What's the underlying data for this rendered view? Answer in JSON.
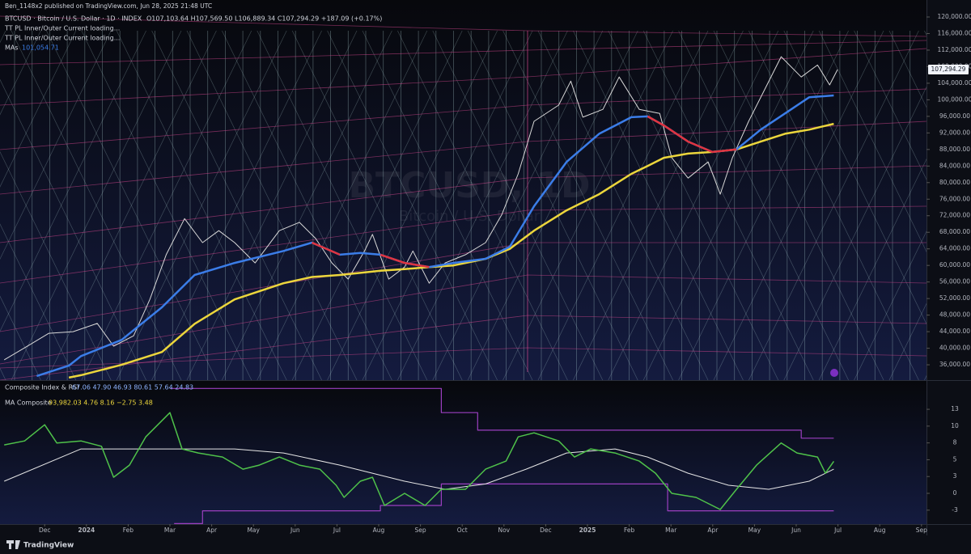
{
  "header": "Ben_1148x2 published on TradingView.com, Jun 28, 2025 21:48 UTC",
  "footer": "TradingView",
  "chart_data": [
    {
      "type": "line",
      "legend": {
        "symbol": "BTCUSD · Bitcoin / U.S. Dollar · 1D · INDEX",
        "ohlc": "O107,103.64 H107,569.50 L106,889.34 C107,294.29 +187.09 (+0.17%)",
        "indicator_1": "TT PL Inner/Outer Current loading...",
        "indicator_2": "TT PL Inner/Outer Current loading...",
        "ma_name": "MAs",
        "ma_value": "101,054.71"
      },
      "watermark": "BTCUSD, 1D",
      "watermark_sub": "Bitcoin / U.S. Dollar",
      "last_price_label": "107,294.29",
      "xlim": [
        -1.07,
        21.12
      ],
      "ylim": [
        32300,
        124100
      ],
      "yticks": [
        {
          "value": 36000,
          "label": "36,000.00"
        },
        {
          "value": 40000,
          "label": "40,000.00"
        },
        {
          "value": 44000,
          "label": "44,000.00"
        },
        {
          "value": 48000,
          "label": "48,000.00"
        },
        {
          "value": 52000,
          "label": "52,000.00"
        },
        {
          "value": 56000,
          "label": "56,000.00"
        },
        {
          "value": 60000,
          "label": "60,000.00"
        },
        {
          "value": 64000,
          "label": "64,000.00"
        },
        {
          "value": 68000,
          "label": "68,000.00"
        },
        {
          "value": 72000,
          "label": "72,000.00"
        },
        {
          "value": 76000,
          "label": "76,000.00"
        },
        {
          "value": 80000,
          "label": "80,000.00"
        },
        {
          "value": 84000,
          "label": "84,000.00"
        },
        {
          "value": 88000,
          "label": "88,000.00"
        },
        {
          "value": 92000,
          "label": "92,000.00"
        },
        {
          "value": 96000,
          "label": "96,000.00"
        },
        {
          "value": 100000,
          "label": "100,000.00"
        },
        {
          "value": 104000,
          "label": "104,000.00"
        },
        {
          "value": 108000,
          "label": "108,000.00"
        },
        {
          "value": 112000,
          "label": "112,000.00"
        },
        {
          "value": 116000,
          "label": "116,000.00"
        },
        {
          "value": 120000,
          "label": "120,000.00"
        }
      ],
      "series": [
        {
          "color": "#d8d8d8",
          "width": 1,
          "x": [
            -0.97,
            -0.48,
            0.1,
            0.68,
            1.26,
            1.65,
            2.13,
            2.52,
            2.91,
            3.35,
            3.78,
            4.17,
            4.55,
            5.04,
            5.62,
            6.1,
            6.49,
            6.88,
            7.27,
            7.66,
            7.85,
            8.24,
            8.62,
            8.82,
            9.21,
            9.59,
            10.08,
            10.56,
            10.95,
            11.34,
            11.72,
            12.31,
            12.6,
            12.89,
            13.37,
            13.76,
            14.24,
            14.73,
            15.02,
            15.41,
            15.89,
            16.18,
            16.47,
            16.86,
            17.25,
            17.64,
            18.12,
            18.51,
            18.8,
            18.99
          ],
          "values": [
            37200,
            40100,
            43600,
            44000,
            46000,
            40500,
            43000,
            51800,
            62600,
            71300,
            65500,
            68400,
            65500,
            60600,
            68400,
            70400,
            66500,
            60600,
            56700,
            63500,
            67500,
            56700,
            59600,
            63500,
            55700,
            60600,
            62600,
            65500,
            72300,
            82100,
            94800,
            98700,
            104500,
            95800,
            97700,
            105500,
            97700,
            96700,
            86000,
            81100,
            85000,
            77200,
            86000,
            94800,
            102600,
            110400,
            105500,
            108400,
            103600,
            107294.29
          ]
        },
        {
          "color": "#ecd63c",
          "width": 2.5,
          "x": [
            -0.19,
            0.58,
            0.87,
            1.84,
            2.81,
            3.59,
            4.55,
            5.72,
            6.4,
            7.07,
            7.56,
            8.04,
            8.62,
            9.21,
            9.79,
            10.56,
            11.14,
            11.72,
            12.5,
            13.28,
            14.05,
            14.44,
            14.83,
            15.41,
            15.99,
            16.57,
            17.15,
            17.73,
            18.31,
            18.9
          ],
          "values": [
            null,
            32900,
            33500,
            36000,
            39100,
            45900,
            51800,
            55700,
            57200,
            57700,
            58200,
            58700,
            59100,
            59600,
            60000,
            61600,
            64000,
            68400,
            73300,
            77200,
            82100,
            84000,
            86000,
            87000,
            87400,
            88000,
            89900,
            91800,
            92800,
            94200
          ]
        },
        {
          "color": "#3b7de8",
          "width": 2.5,
          "x": [
            -0.19,
            0.58,
            0.87,
            1.84,
            2.81,
            3.59,
            4.55,
            5.72,
            6.4,
            7.07,
            7.56,
            8.04,
            8.62,
            9.21,
            9.79,
            10.56,
            11.14,
            11.72,
            12.5,
            13.28,
            14.05,
            14.44,
            14.83,
            15.41,
            15.99,
            16.57,
            17.15,
            17.73,
            18.31,
            18.9
          ],
          "values": [
            33300,
            35800,
            38100,
            42000,
            49900,
            57700,
            60600,
            63500,
            65500,
            62600,
            63000,
            62600,
            60600,
            59600,
            60600,
            61600,
            64500,
            74300,
            85000,
            91800,
            95800,
            96000,
            93800,
            89900,
            87400,
            88000,
            92800,
            96700,
            100600,
            101054.71
          ]
        },
        {
          "color": "#e0343f",
          "width": 2.5,
          "x": [
            -0.19,
            0.58,
            0.87,
            1.84,
            2.81,
            3.59,
            4.55,
            5.72,
            6.4,
            7.07,
            7.56,
            8.04,
            8.62,
            9.21,
            9.79,
            10.56,
            11.14,
            11.72,
            12.5,
            13.28,
            14.05,
            14.44,
            14.83,
            15.41,
            15.99,
            16.57,
            17.15,
            17.73,
            18.31,
            18.9
          ],
          "values": [
            null,
            null,
            null,
            null,
            null,
            null,
            null,
            null,
            65500,
            62600,
            null,
            62600,
            60600,
            59600,
            null,
            null,
            null,
            null,
            null,
            null,
            null,
            96000,
            93800,
            89900,
            87400,
            88000,
            null,
            null,
            null,
            null
          ]
        }
      ]
    },
    {
      "type": "line",
      "legend": {
        "name_1": "Composite Index & RSI",
        "values_1": "67.06 47.90 46.93 80.61 57.64 24.83",
        "name_2": "MA Composite",
        "values_2": "93,982.03 4.76 8.16 −2.75 3.48"
      },
      "xlim": [
        -1.07,
        21.12
      ],
      "ylim": [
        -4.57,
        16.6
      ],
      "yticks": [
        {
          "value": -2.5,
          "label": "-3"
        },
        0,
        {
          "value": 2.5,
          "label": "3"
        },
        5,
        {
          "value": 7.5,
          "label": "8"
        },
        10,
        {
          "value": 12.5,
          "label": "13"
        }
      ],
      "xticks": [
        {
          "value": 0,
          "label": "Dec"
        },
        {
          "value": 1,
          "label": "2024"
        },
        {
          "value": 2,
          "label": "Feb"
        },
        {
          "value": 3,
          "label": "Mar"
        },
        {
          "value": 4,
          "label": "Apr"
        },
        {
          "value": 5,
          "label": "May"
        },
        {
          "value": 6,
          "label": "Jun"
        },
        {
          "value": 7,
          "label": "Jul"
        },
        {
          "value": 8,
          "label": "Aug"
        },
        {
          "value": 9,
          "label": "Sep"
        },
        {
          "value": 10,
          "label": "Oct"
        },
        {
          "value": 11,
          "label": "Nov"
        },
        {
          "value": 12,
          "label": "Dec"
        },
        {
          "value": 13,
          "label": "2025"
        },
        {
          "value": 14,
          "label": "Feb"
        },
        {
          "value": 15,
          "label": "Mar"
        },
        {
          "value": 16,
          "label": "Apr"
        },
        {
          "value": 17,
          "label": "May"
        },
        {
          "value": 18,
          "label": "Jun"
        },
        {
          "value": 19,
          "label": "Jul"
        },
        {
          "value": 20,
          "label": "Aug"
        },
        {
          "value": 21,
          "label": "Sep"
        }
      ],
      "series": [
        {
          "color": "#9b3fc0",
          "width": 1.2,
          "x": [
            3.0,
            9.5,
            9.5,
            10.37,
            10.37,
            18.12,
            18.12,
            18.9
          ],
          "values": [
            15.6,
            15.6,
            12,
            12,
            9.4,
            9.4,
            8.2,
            8.2
          ]
        },
        {
          "color": "#9b3fc0",
          "width": 1.2,
          "x": [
            3.1,
            3.78,
            3.78,
            8.04,
            8.04,
            9.5,
            9.5,
            14.92,
            14.92,
            18.9
          ],
          "values": [
            -4.5,
            -4.5,
            -2.6,
            -2.6,
            -1.8,
            -1.8,
            1.4,
            1.4,
            -2.6,
            -2.6
          ]
        },
        {
          "color": "#e6e6e6",
          "width": 1,
          "x": [
            -0.97,
            0.87,
            2.81,
            4.55,
            5.72,
            7.07,
            8.62,
            9.59,
            10.56,
            11.53,
            12.5,
            13.66,
            14.44,
            15.41,
            16.38,
            17.34,
            18.31,
            18.9
          ],
          "values": [
            1.8,
            6.6,
            6.6,
            6.6,
            6.0,
            4.2,
            1.8,
            0.6,
            1.4,
            3.6,
            6.0,
            6.6,
            5.4,
            3.0,
            1.2,
            0.6,
            1.8,
            3.6
          ]
        },
        {
          "color": "#4fc24a",
          "width": 1.5,
          "x": [
            -0.97,
            -0.48,
            0,
            0.29,
            0.87,
            1.36,
            1.65,
            2.03,
            2.42,
            3.0,
            3.29,
            3.68,
            4.26,
            4.75,
            5.14,
            5.62,
            6.1,
            6.59,
            6.98,
            7.17,
            7.56,
            7.85,
            8.14,
            8.62,
            9.11,
            9.5,
            10.08,
            10.56,
            11.05,
            11.34,
            11.72,
            12.31,
            12.69,
            13.08,
            13.66,
            14.24,
            14.63,
            15.02,
            15.6,
            16.18,
            16.57,
            17.05,
            17.64,
            18.02,
            18.51,
            18.7,
            18.9
          ],
          "values": [
            7.2,
            7.8,
            10.2,
            7.5,
            7.8,
            7.0,
            2.4,
            4.2,
            8.4,
            12.0,
            6.6,
            6.0,
            5.4,
            3.6,
            4.2,
            5.4,
            4.2,
            3.6,
            1.2,
            -0.6,
            1.8,
            2.4,
            -1.8,
            0,
            -1.8,
            0.6,
            0.6,
            3.6,
            4.8,
            8.4,
            9.0,
            7.8,
            5.4,
            6.6,
            6.0,
            4.8,
            3.0,
            0,
            -0.6,
            -2.4,
            0.6,
            4.2,
            7.5,
            6.0,
            5.4,
            3.0,
            4.76
          ]
        }
      ]
    }
  ]
}
